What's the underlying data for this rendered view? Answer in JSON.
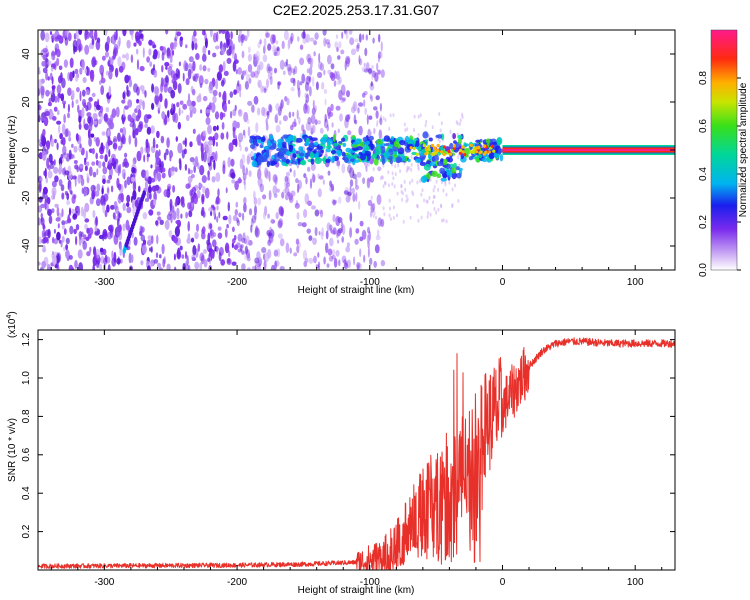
{
  "title": "C2E2.2025.253.17.31.G07",
  "chart_data": [
    {
      "type": "heatmap",
      "title": "C2E2.2025.253.17.31.G07",
      "xlabel": "Height of straight line (km)",
      "ylabel": "Frequency (Hz)",
      "xlim": [
        -350,
        130
      ],
      "ylim": [
        -50,
        50
      ],
      "xticks": [
        -300,
        -200,
        -100,
        0,
        100
      ],
      "yticks": [
        -40,
        -20,
        0,
        20,
        40
      ],
      "colorbar": {
        "label": "Normalized spectral amplitude",
        "range": [
          0.0,
          1.0
        ],
        "ticks": [
          0.0,
          0.2,
          0.4,
          0.6,
          0.8
        ],
        "tick_labels": [
          "0.0",
          "0.2",
          "0.4",
          "0.6",
          "0.8"
        ]
      },
      "features": {
        "noise_region_x": [
          -350,
          -100
        ],
        "signal_line_start_x": -190,
        "signal_line_y": 0,
        "strong_signal_start_x": 0,
        "diagonal_streak": {
          "x": [
            -285,
            -270
          ],
          "y": [
            -42,
            -18
          ]
        }
      }
    },
    {
      "type": "line",
      "xlabel": "Height of straight line (km)",
      "ylabel": "SNR (10 * v/v)",
      "multiplier_label": "(x10",
      "multiplier_exponent": "4",
      "multiplier_close": ")",
      "xlim": [
        -350,
        130
      ],
      "ylim": [
        0,
        1.25
      ],
      "xticks": [
        -300,
        -200,
        -100,
        0,
        100
      ],
      "yticks": [
        0.2,
        0.4,
        0.6,
        0.8,
        1.0,
        1.2
      ],
      "ytick_labels": [
        "0.2",
        "0.4",
        "0.6",
        "0.8",
        "1.0",
        "1.2"
      ],
      "series": [
        {
          "name": "SNR",
          "color": "#e8302a",
          "envelope_x": [
            -350,
            -200,
            -150,
            -110,
            -90,
            -80,
            -70,
            -60,
            -50,
            -40,
            -30,
            -25,
            -20,
            -15,
            -10,
            0,
            10,
            20,
            30,
            40,
            50,
            60,
            80,
            100,
            130
          ],
          "envelope_y": [
            0.02,
            0.025,
            0.03,
            0.04,
            0.06,
            0.12,
            0.25,
            0.35,
            0.45,
            0.5,
            0.55,
            0.6,
            0.68,
            0.75,
            0.78,
            0.85,
            0.95,
            1.06,
            1.14,
            1.18,
            1.19,
            1.19,
            1.18,
            1.18,
            1.18
          ]
        }
      ]
    }
  ],
  "colors": {
    "line": "#e8302a",
    "line_core": "#e8302a"
  }
}
